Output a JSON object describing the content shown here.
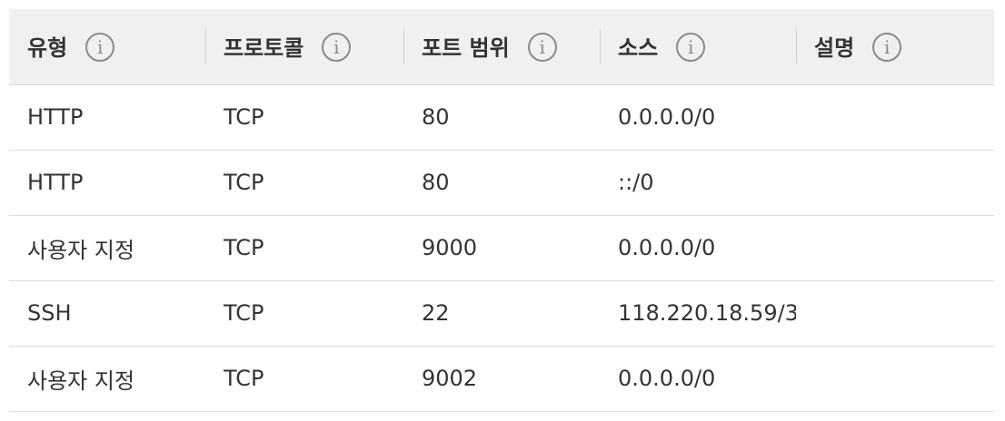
{
  "columns": [
    {
      "label": "유형",
      "icon": "info-icon"
    },
    {
      "label": "프로토콜",
      "icon": "info-icon"
    },
    {
      "label": "포트 범위",
      "icon": "info-icon"
    },
    {
      "label": "소스",
      "icon": "info-icon"
    },
    {
      "label": "설명",
      "icon": "info-icon"
    }
  ],
  "info_glyph": "i",
  "rows": [
    {
      "type": "HTTP",
      "protocol": "TCP",
      "port_range": "80",
      "source": "0.0.0.0/0",
      "description": ""
    },
    {
      "type": "HTTP",
      "protocol": "TCP",
      "port_range": "80",
      "source": "::/0",
      "description": ""
    },
    {
      "type": "사용자 지정",
      "protocol": "TCP",
      "port_range": "9000",
      "source": "0.0.0.0/0",
      "description": ""
    },
    {
      "type": "SSH",
      "protocol": "TCP",
      "port_range": "22",
      "source": "118.220.18.59/3",
      "description": ""
    },
    {
      "type": "사용자 지정",
      "protocol": "TCP",
      "port_range": "9002",
      "source": "0.0.0.0/0",
      "description": ""
    }
  ]
}
